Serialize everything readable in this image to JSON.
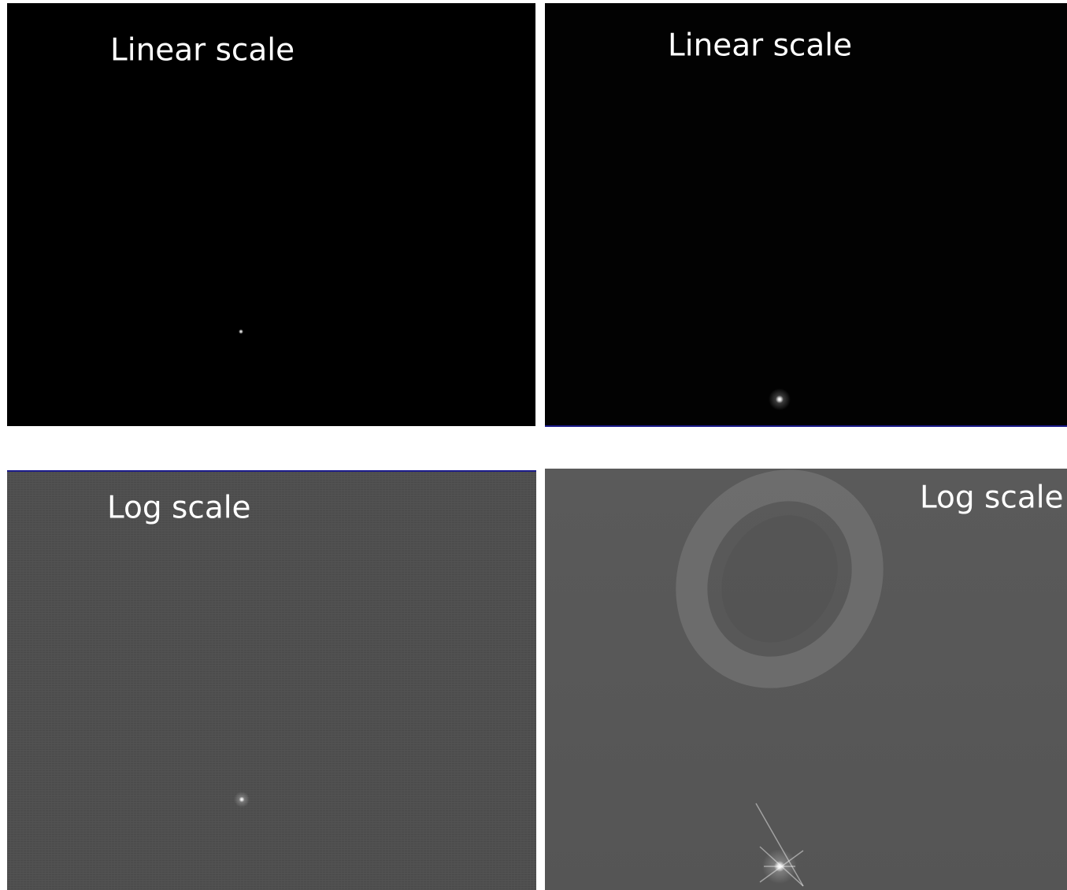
{
  "panels": [
    {
      "label": "Linear scale"
    },
    {
      "label": "Linear scale"
    },
    {
      "label": "Log scale"
    },
    {
      "label": "Log scale"
    }
  ]
}
